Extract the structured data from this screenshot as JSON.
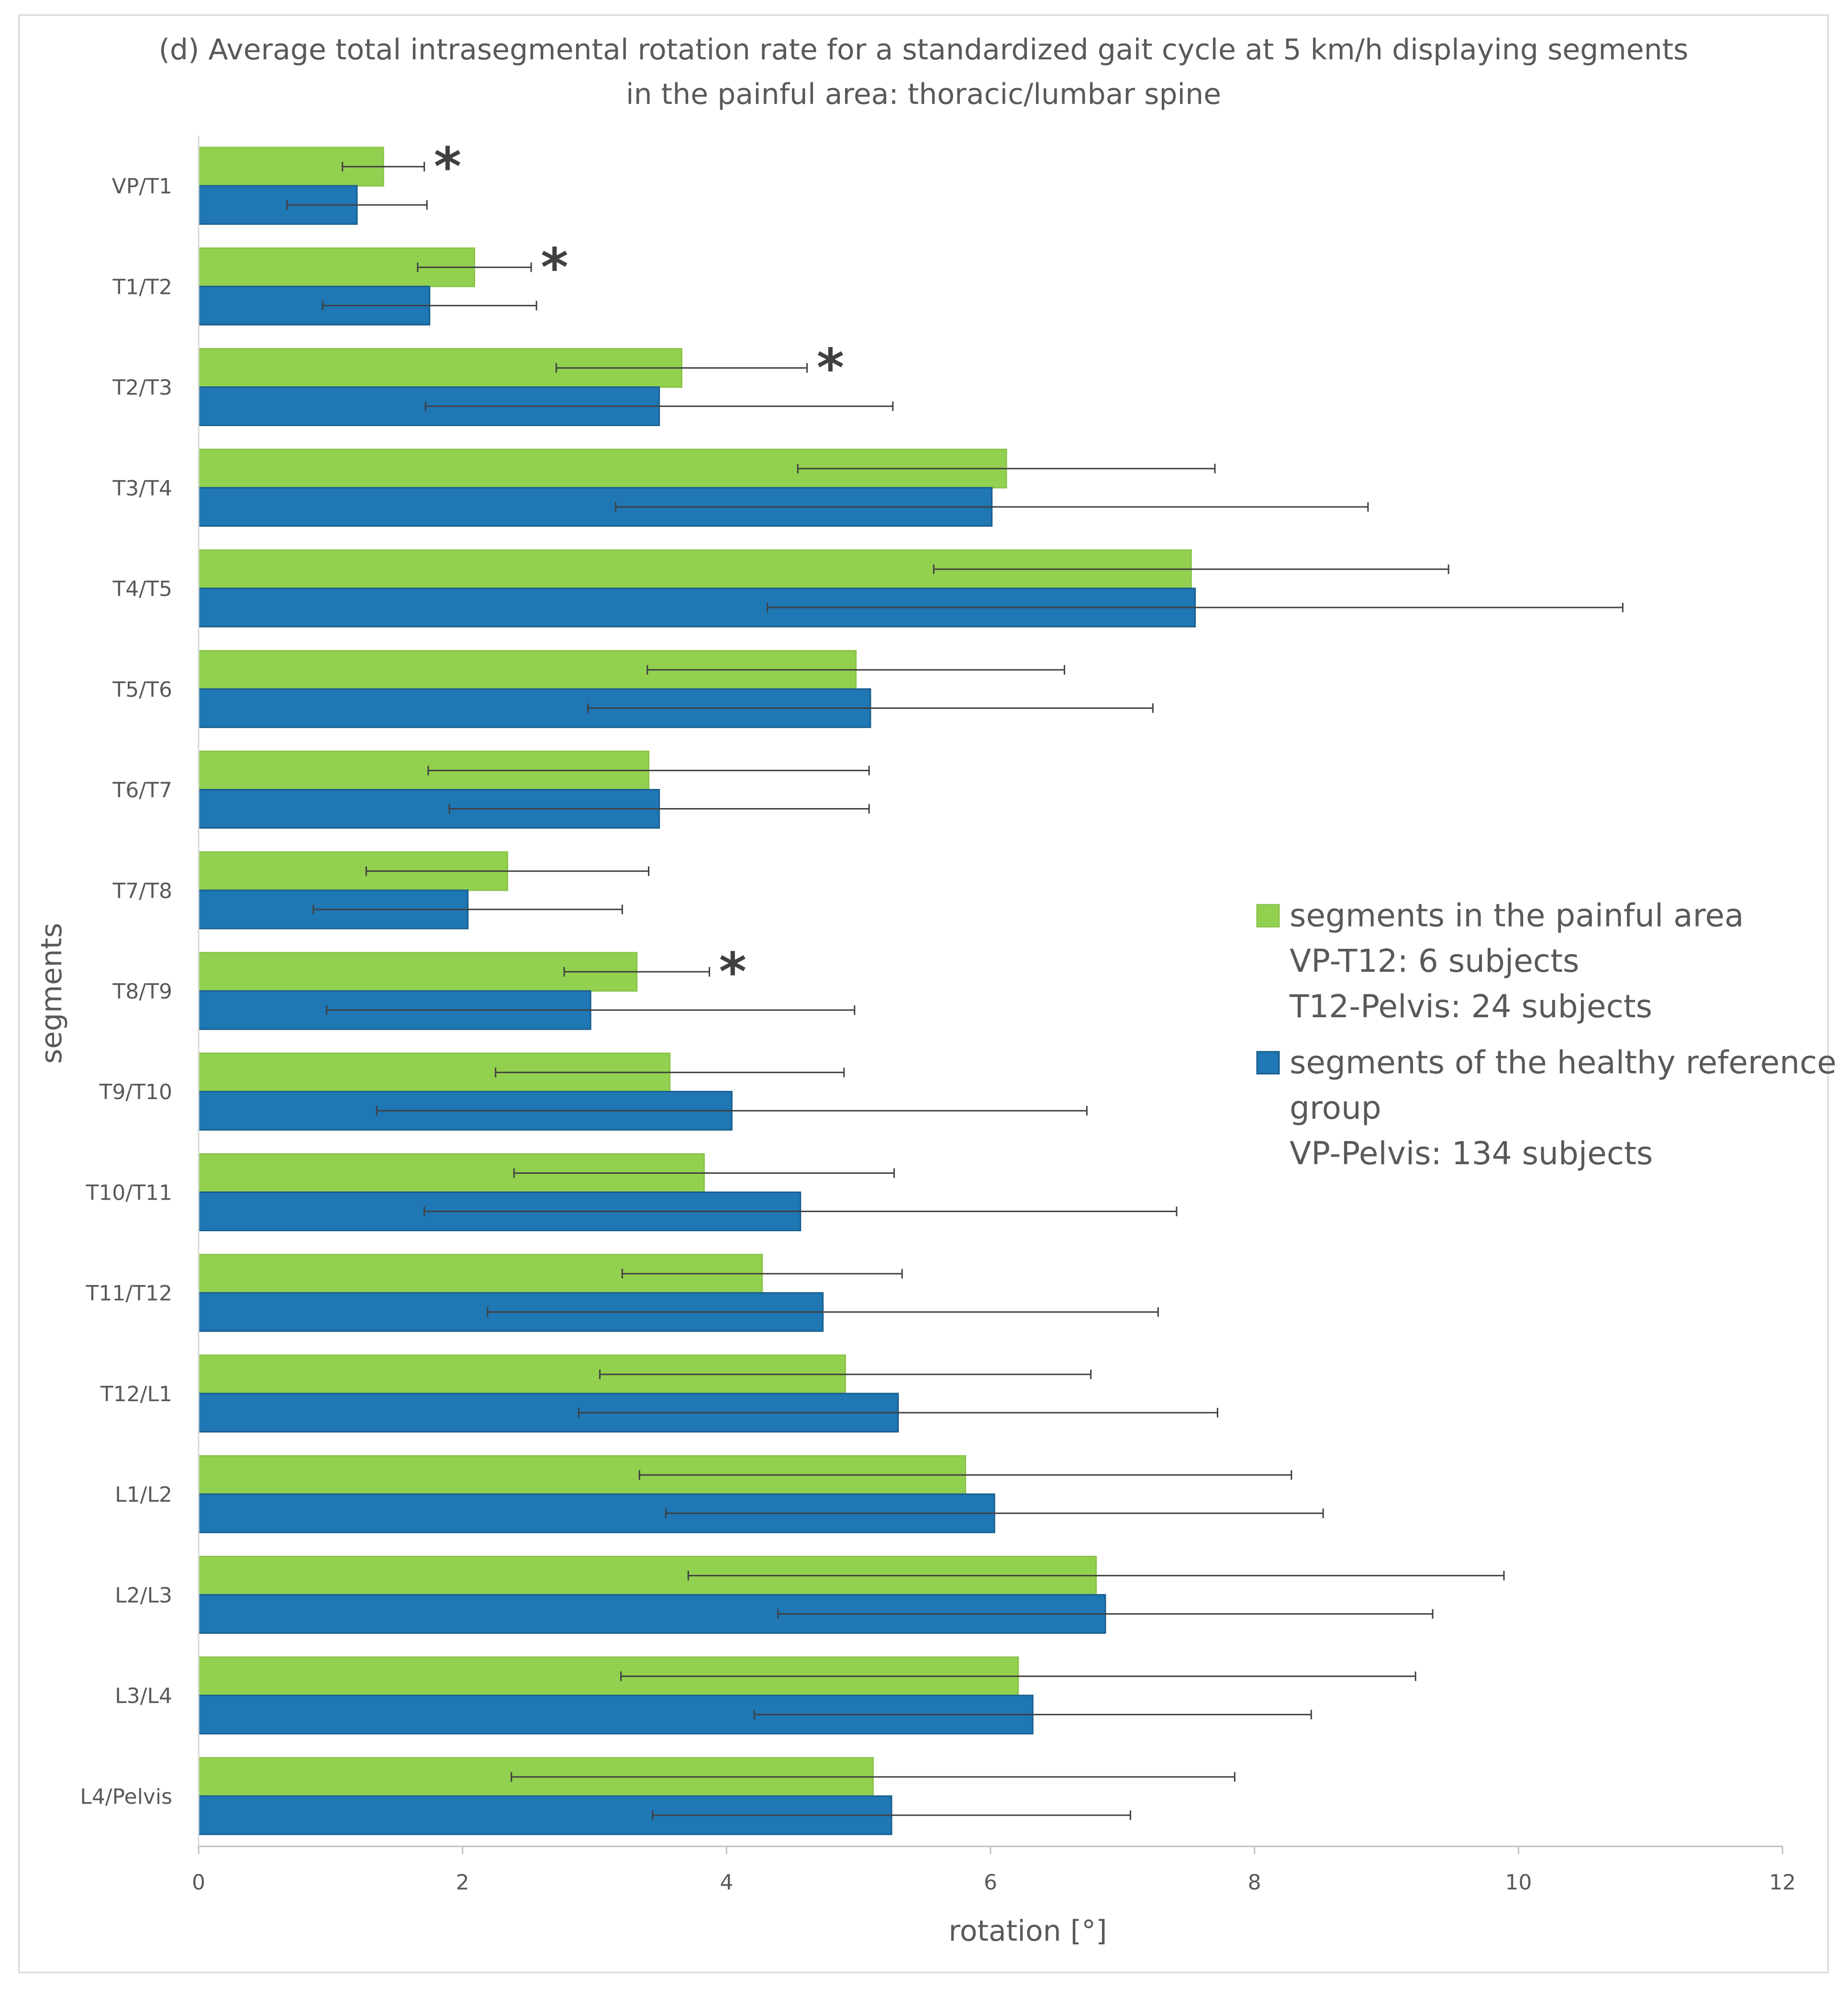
{
  "chart_data": {
    "type": "bar",
    "orientation": "horizontal",
    "title_lines": [
      "(d) Average total intrasegmental rotation rate for a standardized gait cycle at 5 km/h displaying segments",
      "in the painful area: thoracic/lumbar spine"
    ],
    "xlabel": "rotation [°]",
    "ylabel": "segments",
    "xlim": [
      0,
      12
    ],
    "xticks": [
      0,
      2,
      4,
      6,
      8,
      10,
      12
    ],
    "xtick_labels": [
      "0",
      "2",
      "4",
      "6",
      "8",
      "10",
      "12"
    ],
    "categories": [
      "VP/T1",
      "T1/T2",
      "T2/T3",
      "T3/T4",
      "T4/T5",
      "T5/T6",
      "T6/T7",
      "T7/T8",
      "T8/T9",
      "T9/T10",
      "T10/T11",
      "T11/T12",
      "T12/L1",
      "L1/L2",
      "L2/L3",
      "L3/L4",
      "L4/Pelvis"
    ],
    "series": [
      {
        "name": "segments in the painful area",
        "color": "#92d050",
        "values": [
          1.4,
          2.09,
          3.66,
          6.12,
          7.52,
          4.98,
          3.41,
          2.34,
          3.32,
          3.57,
          3.83,
          4.27,
          4.9,
          5.81,
          6.8,
          6.21,
          5.11
        ],
        "errors": [
          0.31,
          0.43,
          0.95,
          1.58,
          1.95,
          1.58,
          1.67,
          1.07,
          0.55,
          1.32,
          1.44,
          1.06,
          1.86,
          2.47,
          3.09,
          3.01,
          2.74
        ]
      },
      {
        "name": "segments of the healthy reference group",
        "color": "#1f77b4",
        "values": [
          1.2,
          1.75,
          3.49,
          6.01,
          7.55,
          5.09,
          3.49,
          2.04,
          2.97,
          4.04,
          4.56,
          4.73,
          5.3,
          6.03,
          6.87,
          6.32,
          5.25
        ],
        "errors": [
          0.53,
          0.81,
          1.77,
          2.85,
          3.24,
          2.14,
          1.59,
          1.17,
          2.0,
          2.69,
          2.85,
          2.54,
          2.42,
          2.49,
          2.48,
          2.11,
          1.81
        ]
      }
    ],
    "significant": [
      "VP/T1",
      "T1/T2",
      "T2/T3",
      "T8/T9"
    ],
    "significance_marker": "*",
    "legend": {
      "position": "right",
      "entries": [
        {
          "lines": [
            "segments in the painful area",
            "VP-T12: 6 subjects",
            "T12-Pelvis: 24 subjects"
          ]
        },
        {
          "lines": [
            "segments of the healthy reference",
            "group",
            "VP-Pelvis: 134 subjects"
          ]
        }
      ]
    }
  }
}
